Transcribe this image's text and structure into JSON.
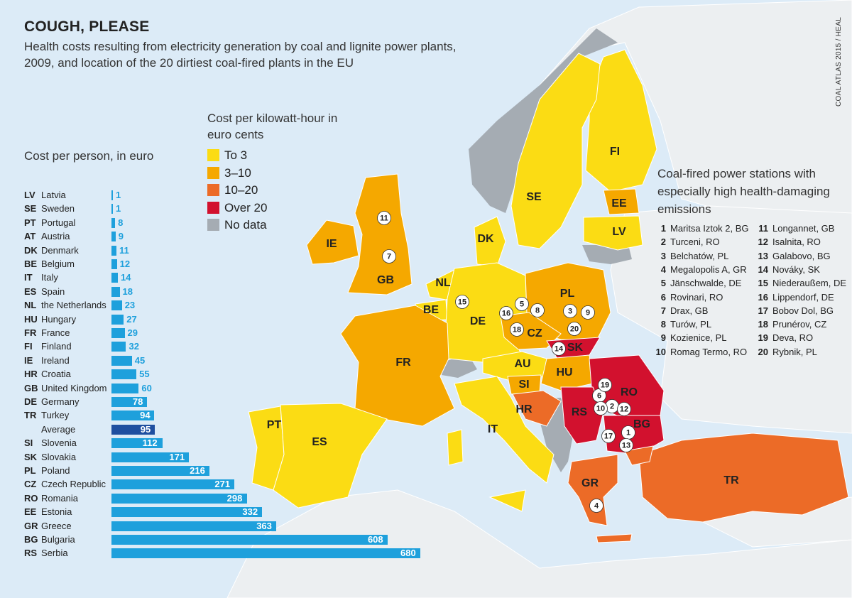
{
  "header": {
    "title": "COUGH, PLEASE",
    "subtitle": "Health costs resulting from electricity generation by coal and lignite power plants, 2009, and location of the 20 dirtiest coal-fired plants in the EU",
    "credit": "COAL ATLAS 2015 / HEAL"
  },
  "map_legend": {
    "title": "Cost per kilowatt-hour in euro cents",
    "items": [
      {
        "label": "To 3",
        "color": "#fbdc14"
      },
      {
        "label": "3–10",
        "color": "#f5a800"
      },
      {
        "label": "10–20",
        "color": "#ec6b27"
      },
      {
        "label": "Over 20",
        "color": "#d2112e"
      },
      {
        "label": "No data",
        "color": "#a5acb3"
      }
    ]
  },
  "colors": {
    "sea": "#dcebf7",
    "land_other": "#eceff1",
    "bar": "#1ea0dc",
    "bar_average": "#1f4fa0"
  },
  "map_labels": [
    "FI",
    "SE",
    "EE",
    "LV",
    "DK",
    "IE",
    "GB",
    "NL",
    "BE",
    "DE",
    "PL",
    "CZ",
    "SK",
    "FR",
    "AU",
    "HU",
    "SI",
    "RO",
    "HR",
    "RS",
    "BG",
    "PT",
    "ES",
    "IT",
    "GR",
    "TR"
  ],
  "pins": [
    "1",
    "2",
    "3",
    "4",
    "5",
    "6",
    "7",
    "8",
    "9",
    "10",
    "11",
    "12",
    "13",
    "14",
    "15",
    "16",
    "17",
    "18",
    "19",
    "20"
  ],
  "stations": {
    "title": "Coal-fired power stations with especially high health-damaging emissions",
    "items": [
      {
        "n": "1",
        "name": "Maritsa Iztok 2, BG"
      },
      {
        "n": "2",
        "name": "Turceni, RO"
      },
      {
        "n": "3",
        "name": "Belchatów, PL"
      },
      {
        "n": "4",
        "name": "Megalopolis A, GR"
      },
      {
        "n": "5",
        "name": "Jänschwalde, DE"
      },
      {
        "n": "6",
        "name": "Rovinari, RO"
      },
      {
        "n": "7",
        "name": "Drax, GB"
      },
      {
        "n": "8",
        "name": "Turów, PL"
      },
      {
        "n": "9",
        "name": "Kozienice, PL"
      },
      {
        "n": "10",
        "name": "Romag Termo, RO"
      },
      {
        "n": "11",
        "name": "Longannet, GB"
      },
      {
        "n": "12",
        "name": "Isalnita, RO"
      },
      {
        "n": "13",
        "name": "Galabovo, BG"
      },
      {
        "n": "14",
        "name": "Nováky, SK"
      },
      {
        "n": "15",
        "name": "Niederaußem, DE"
      },
      {
        "n": "16",
        "name": "Lippendorf, DE"
      },
      {
        "n": "17",
        "name": "Bobov Dol, BG"
      },
      {
        "n": "18",
        "name": "Prunérov, CZ"
      },
      {
        "n": "19",
        "name": "Deva, RO"
      },
      {
        "n": "20",
        "name": "Rybnik, PL"
      }
    ]
  },
  "chart_data": {
    "type": "bar",
    "title": "Cost per person, in euro",
    "orientation": "horizontal",
    "categories": [
      {
        "code": "LV",
        "name": "Latvia"
      },
      {
        "code": "SE",
        "name": "Sweden"
      },
      {
        "code": "PT",
        "name": "Portugal"
      },
      {
        "code": "AT",
        "name": "Austria"
      },
      {
        "code": "DK",
        "name": "Denmark"
      },
      {
        "code": "BE",
        "name": "Belgium"
      },
      {
        "code": "IT",
        "name": "Italy"
      },
      {
        "code": "ES",
        "name": "Spain"
      },
      {
        "code": "NL",
        "name": "the Netherlands"
      },
      {
        "code": "HU",
        "name": "Hungary"
      },
      {
        "code": "FR",
        "name": "France"
      },
      {
        "code": "FI",
        "name": "Finland"
      },
      {
        "code": "IE",
        "name": "Ireland"
      },
      {
        "code": "HR",
        "name": "Croatia"
      },
      {
        "code": "GB",
        "name": "United Kingdom"
      },
      {
        "code": "DE",
        "name": "Germany"
      },
      {
        "code": "TR",
        "name": "Turkey"
      },
      {
        "code": "",
        "name": "Average",
        "highlight": true
      },
      {
        "code": "SI",
        "name": "Slovenia"
      },
      {
        "code": "SK",
        "name": "Slovakia"
      },
      {
        "code": "PL",
        "name": "Poland"
      },
      {
        "code": "CZ",
        "name": "Czech Republic"
      },
      {
        "code": "RO",
        "name": "Romania"
      },
      {
        "code": "EE",
        "name": "Estonia"
      },
      {
        "code": "GR",
        "name": "Greece"
      },
      {
        "code": "BG",
        "name": "Bulgaria"
      },
      {
        "code": "RS",
        "name": "Serbia"
      }
    ],
    "values": [
      1,
      1,
      8,
      9,
      11,
      12,
      14,
      18,
      23,
      27,
      29,
      32,
      45,
      55,
      60,
      78,
      94,
      95,
      112,
      171,
      216,
      271,
      298,
      332,
      363,
      608,
      680
    ],
    "xlim": [
      0,
      680
    ]
  }
}
